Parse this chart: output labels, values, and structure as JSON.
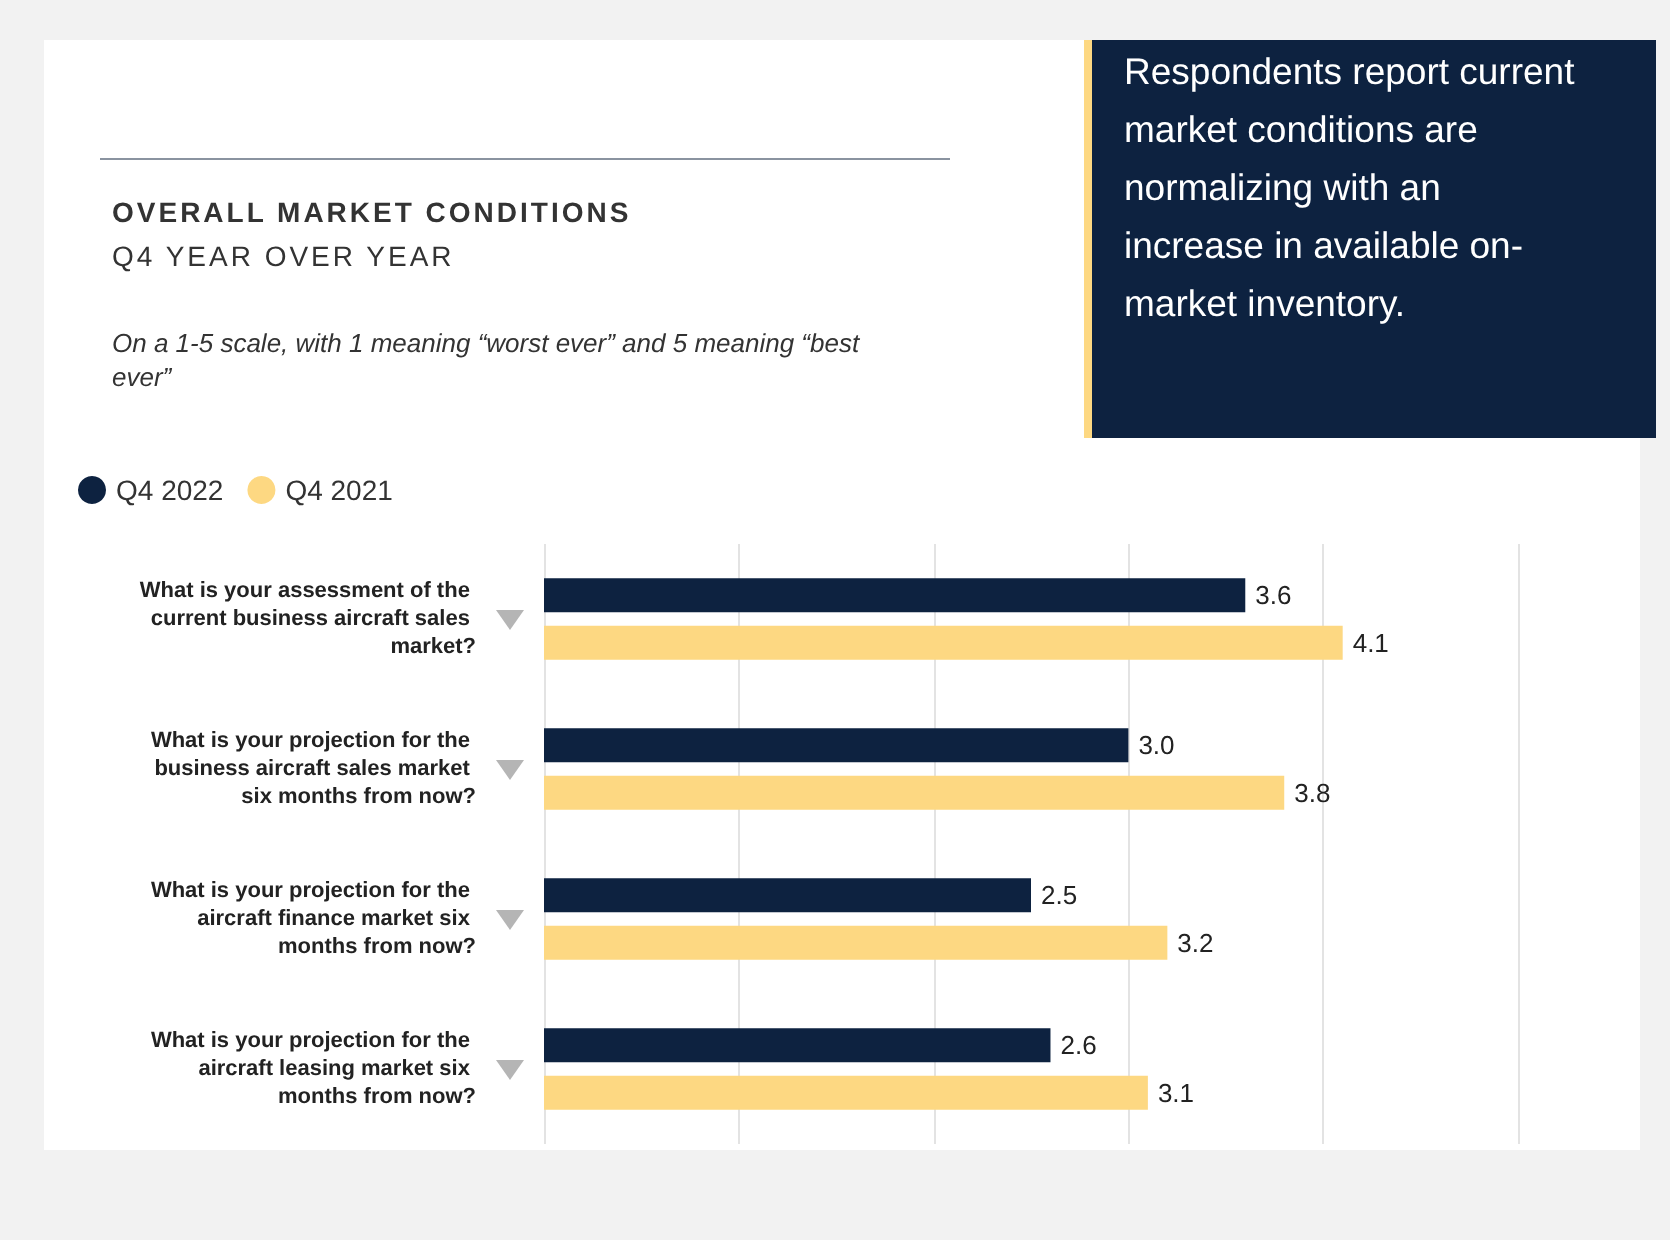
{
  "chart_data": {
    "type": "bar",
    "orientation": "horizontal",
    "title": "OVERALL MARKET CONDITIONS",
    "subtitle": "Q4 YEAR OVER YEAR",
    "annotations": [
      "On a 1-5 scale, with 1 meaning “worst ever” and 5 meaning “best ever”",
      "Respondents report current market conditions are normalizing with an increase in available on-market inventory."
    ],
    "categories": [
      "What is your assessment of the current business aircraft sales market?",
      "What is your projection for the business aircraft sales market six months from now?",
      "What is your projection for the aircraft finance market six months from now?",
      "What is your projection for the aircraft leasing market six months from now?"
    ],
    "series": [
      {
        "name": "Q4 2022",
        "color": "#0d2240",
        "values": [
          3.6,
          3.0,
          2.5,
          2.6
        ],
        "value_labels": [
          "3.6",
          "3.0",
          "2.5",
          "2.6"
        ]
      },
      {
        "name": "Q4 2021",
        "color": "#fdd882",
        "values": [
          4.1,
          3.8,
          3.2,
          3.1
        ],
        "value_labels": [
          "4.1",
          "3.8",
          "3.2",
          "3.1"
        ]
      }
    ],
    "xlim": [
      0,
      5
    ],
    "xticks": [
      {
        "value": 0,
        "label": null
      },
      {
        "value": 1,
        "label": null
      },
      {
        "value": 2,
        "label": null
      },
      {
        "value": 3,
        "label": null
      },
      {
        "value": 4,
        "label": null
      },
      {
        "value": 5,
        "label": null
      }
    ],
    "grid": "x",
    "tick_labels": "y",
    "legend": "top left"
  }
}
